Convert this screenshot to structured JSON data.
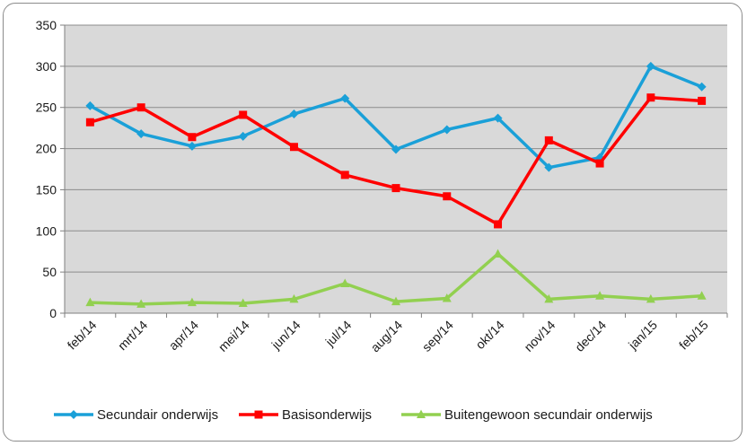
{
  "chart_data": {
    "type": "line",
    "categories": [
      "feb/14",
      "mrt/14",
      "apr/14",
      "mei/14",
      "jun/14",
      "jul/14",
      "aug/14",
      "sep/14",
      "okt/14",
      "nov/14",
      "dec/14",
      "jan/15",
      "feb/15"
    ],
    "series": [
      {
        "name": "Secundair onderwijs",
        "color": "#1aa0d8",
        "marker": "diamond",
        "values": [
          252,
          218,
          203,
          215,
          242,
          261,
          199,
          223,
          237,
          177,
          189,
          300,
          275
        ]
      },
      {
        "name": "Basisonderwijs",
        "color": "#ff0000",
        "marker": "square",
        "values": [
          232,
          250,
          214,
          241,
          202,
          168,
          152,
          142,
          108,
          210,
          182,
          262,
          258
        ]
      },
      {
        "name": "Buitengewoon secundair onderwijs",
        "color": "#92d050",
        "marker": "triangle",
        "values": [
          13,
          11,
          13,
          12,
          17,
          36,
          14,
          18,
          72,
          17,
          21,
          17,
          21
        ]
      }
    ],
    "ylim": [
      0,
      350
    ],
    "yticks": [
      0,
      50,
      100,
      150,
      200,
      250,
      300,
      350
    ],
    "grid": true,
    "legend_position": "bottom",
    "title": "",
    "xlabel": "",
    "ylabel": ""
  },
  "colors": {
    "plot_background": "#d9d9d9",
    "gridline": "#8c8c8c",
    "frame_border": "#8c8c8c"
  }
}
